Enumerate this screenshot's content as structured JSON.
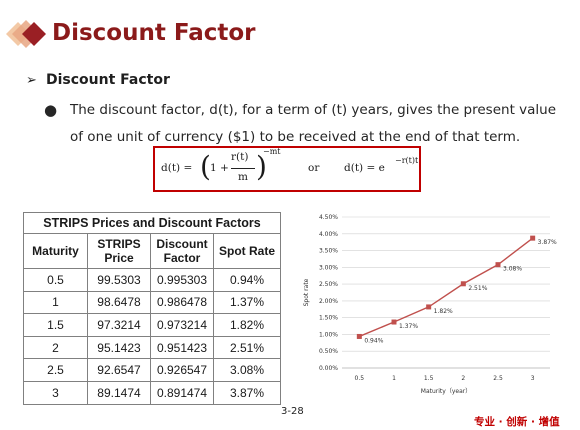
{
  "header": {
    "title": "Discount Factor"
  },
  "section": {
    "heading": "Discount Factor",
    "bullet_text": "The discount factor, d(t), for a term of (t) years, gives the present value of one unit of currency ($1) to be received at the end of that term."
  },
  "formula": {
    "lhs1": "d(t) =",
    "one_plus": "1 +",
    "num": "r(t)",
    "den": "m",
    "exponent": "−mt",
    "or": "or",
    "lhs2": "d(t) = e",
    "exponent2": "−r(t)t"
  },
  "table": {
    "caption": "STRIPS Prices and Discount Factors",
    "headers": [
      "Maturity",
      "STRIPS Price",
      "Discount Factor",
      "Spot Rate"
    ],
    "rows": [
      [
        "0.5",
        "99.5303",
        "0.995303",
        "0.94%"
      ],
      [
        "1",
        "98.6478",
        "0.986478",
        "1.37%"
      ],
      [
        "1.5",
        "97.3214",
        "0.973214",
        "1.82%"
      ],
      [
        "2",
        "95.1423",
        "0.951423",
        "2.51%"
      ],
      [
        "2.5",
        "92.6547",
        "0.926547",
        "3.08%"
      ],
      [
        "3",
        "89.1474",
        "0.891474",
        "3.87%"
      ]
    ]
  },
  "chart_data": {
    "type": "line",
    "x": [
      0.5,
      1,
      1.5,
      2,
      2.5,
      3
    ],
    "x_tick_labels": [
      "0.5",
      "1",
      "1.5",
      "2",
      "2.5",
      "3"
    ],
    "series": [
      {
        "values": [
          0.94,
          1.37,
          1.82,
          2.51,
          3.08,
          3.87
        ],
        "labels": [
          "0.94%",
          "1.37%",
          "1.82%",
          "2.51%",
          "3.08%",
          "3.87%"
        ],
        "color": "#c0504d"
      }
    ],
    "ylim": [
      0,
      4.5
    ],
    "y_ticks": [
      "0.00%",
      "0.50%",
      "1.00%",
      "1.50%",
      "2.00%",
      "2.50%",
      "3.00%",
      "3.50%",
      "4.00%",
      "4.50%"
    ],
    "xlabel": "Maturity（year）",
    "ylabel": "Spot rate",
    "grid": true,
    "legend": "none"
  },
  "footer": {
    "page": "3-28",
    "slogan": "专业 · 创新 · 增值"
  },
  "colors": {
    "title": "#8b1a1a",
    "accent": "#c00000",
    "series": "#c0504d"
  }
}
